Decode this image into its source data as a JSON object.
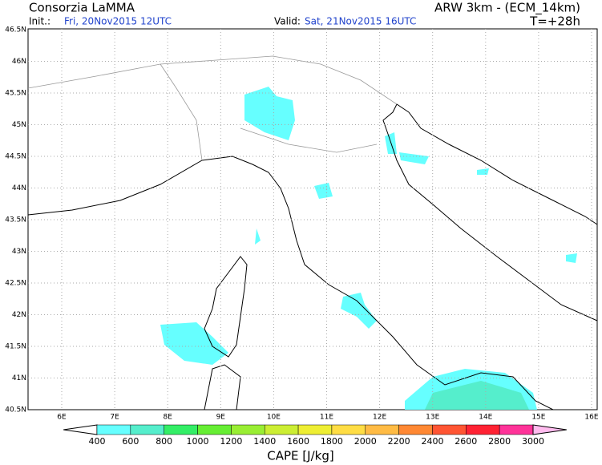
{
  "header": {
    "title": "Consorzia LaMMA",
    "init_label": "Init.:",
    "init": "Fri, 20Nov2015 12UTC",
    "valid_label": "Valid:",
    "valid": "Sat, 21Nov2015 16UTC",
    "model": "ARW 3km - (ECM_14km)",
    "lead": "T=+28h"
  },
  "map": {
    "lat_labels": [
      "46.5N",
      "46N",
      "45.5N",
      "45N",
      "44.5N",
      "44N",
      "43.5N",
      "43N",
      "42.5N",
      "42N",
      "41.5N",
      "41N",
      "40.5N"
    ],
    "lon_labels": [
      "6E",
      "7E",
      "8E",
      "9E",
      "10E",
      "11E",
      "12E",
      "13E",
      "14E",
      "15E",
      "16E"
    ]
  },
  "colorbar": {
    "label": "CAPE [J/kg]",
    "levels": [
      400,
      600,
      800,
      1000,
      1200,
      1400,
      1600,
      1800,
      2000,
      2200,
      2400,
      2600,
      2800,
      3000
    ],
    "colors": [
      "#ffffff",
      "#66ffff",
      "#55eecc",
      "#33ee66",
      "#66ee33",
      "#99ee33",
      "#ccee33",
      "#eeee33",
      "#ffdd44",
      "#ffbb44",
      "#ff8833",
      "#ff5533",
      "#ff2233",
      "#ff3399",
      "#ff77cc",
      "#ffbbee"
    ]
  }
}
